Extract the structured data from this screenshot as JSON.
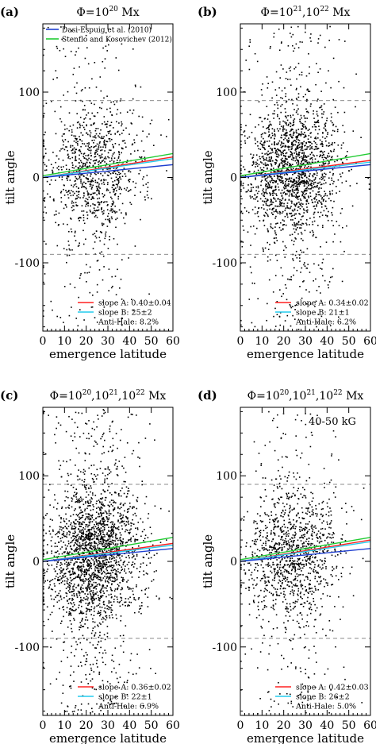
{
  "figure": {
    "xlabel": "emergence latitude",
    "ylabel": "tilt angle",
    "colors": {
      "red": "#ff2020",
      "blue": "#1f3fd0",
      "green": "#22cc33",
      "cyan": "#22ccee",
      "points": "#000000",
      "dashed": "#666666"
    }
  },
  "chart_data": [
    {
      "type": "scatter",
      "panel_label": "(a)",
      "title_prefix": "Φ=",
      "title_exponents": [
        "10",
        "20"
      ],
      "title_suffix": "Mx",
      "title_text": "Φ=10^20 Mx",
      "legend_top": [
        {
          "label": "Dasi-Espuig et al. (2010)",
          "color": "#1f3fd0"
        },
        {
          "label": "Stenflo and Kosovichev (2012)",
          "color": "#22cc33"
        }
      ],
      "legend_bottom": [
        {
          "label": "slope A: 0.40±0.04",
          "color": "#ff2020"
        },
        {
          "label": "slope B: 25±2",
          "color": "#22ccee"
        },
        {
          "label": "Anti-Hale: 8.2%",
          "color": ""
        }
      ],
      "annotation": "",
      "xlim": [
        0,
        60
      ],
      "ylim": [
        -180,
        180
      ],
      "xticks": [
        0,
        10,
        20,
        30,
        40,
        50,
        60
      ],
      "yticks": [
        -100,
        0,
        100
      ],
      "hlines": [
        90,
        -90
      ],
      "point_count": 1100,
      "lines": [
        {
          "name": "slope A",
          "color": "#ff2020",
          "x": [
            0,
            60
          ],
          "y": [
            0,
            24
          ]
        },
        {
          "name": "slope B",
          "color": "#22ccee",
          "x": [
            0,
            60
          ],
          "y": [
            0,
            22
          ]
        },
        {
          "name": "Dasi-Espuig et al. (2010)",
          "color": "#1f3fd0",
          "x": [
            0,
            60
          ],
          "y": [
            0,
            15
          ]
        },
        {
          "name": "Stenflo and Kosovichev (2012)",
          "color": "#22cc33",
          "x": [
            0,
            60
          ],
          "y": [
            2,
            28
          ]
        }
      ]
    },
    {
      "type": "scatter",
      "panel_label": "(b)",
      "title_prefix": "Φ=",
      "title_exponents": [
        "10",
        "21",
        "10",
        "22"
      ],
      "title_suffix": "Mx",
      "title_text": "Φ=10^21,10^22 Mx",
      "legend_top": [],
      "legend_bottom": [
        {
          "label": "slope A: 0.34±0.02",
          "color": "#ff2020"
        },
        {
          "label": "slope B: 21±1",
          "color": "#22ccee"
        },
        {
          "label": "Anti-Hale: 6.2%",
          "color": ""
        }
      ],
      "annotation": "",
      "xlim": [
        0,
        60
      ],
      "ylim": [
        -180,
        180
      ],
      "xticks": [
        0,
        10,
        20,
        30,
        40,
        50,
        60
      ],
      "yticks": [
        -100,
        0,
        100
      ],
      "hlines": [
        90,
        -90
      ],
      "point_count": 1900,
      "lines": [
        {
          "name": "slope A",
          "color": "#ff2020",
          "x": [
            0,
            60
          ],
          "y": [
            0,
            20
          ]
        },
        {
          "name": "slope B",
          "color": "#22ccee",
          "x": [
            0,
            60
          ],
          "y": [
            0,
            18
          ]
        },
        {
          "name": "blue",
          "color": "#1f3fd0",
          "x": [
            0,
            60
          ],
          "y": [
            0,
            15
          ]
        },
        {
          "name": "green",
          "color": "#22cc33",
          "x": [
            0,
            60
          ],
          "y": [
            2,
            28
          ]
        }
      ]
    },
    {
      "type": "scatter",
      "panel_label": "(c)",
      "title_prefix": "Φ=",
      "title_exponents": [
        "10",
        "20",
        "10",
        "21",
        "10",
        "22"
      ],
      "title_suffix": "Mx",
      "title_text": "Φ=10^20,10^21,10^22 Mx",
      "legend_top": [],
      "legend_bottom": [
        {
          "label": "slope A: 0.36±0.02",
          "color": "#ff2020"
        },
        {
          "label": "slope B: 22±1",
          "color": "#22ccee"
        },
        {
          "label": "Anti-Hale: 6.9%",
          "color": ""
        }
      ],
      "annotation": "",
      "xlim": [
        0,
        60
      ],
      "ylim": [
        -180,
        180
      ],
      "xticks": [
        0,
        10,
        20,
        30,
        40,
        50,
        60
      ],
      "yticks": [
        -100,
        0,
        100
      ],
      "hlines": [
        90,
        -90
      ],
      "point_count": 2400,
      "lines": [
        {
          "name": "slope A",
          "color": "#ff2020",
          "x": [
            0,
            60
          ],
          "y": [
            0,
            21
          ]
        },
        {
          "name": "slope B",
          "color": "#22ccee",
          "x": [
            0,
            60
          ],
          "y": [
            0,
            19
          ]
        },
        {
          "name": "blue",
          "color": "#1f3fd0",
          "x": [
            0,
            60
          ],
          "y": [
            0,
            15
          ]
        },
        {
          "name": "green",
          "color": "#22cc33",
          "x": [
            0,
            60
          ],
          "y": [
            2,
            28
          ]
        }
      ]
    },
    {
      "type": "scatter",
      "panel_label": "(d)",
      "title_prefix": "Φ=",
      "title_exponents": [
        "10",
        "20",
        "10",
        "21",
        "10",
        "22"
      ],
      "title_suffix": "Mx",
      "title_text": "Φ=10^20,10^21,10^22 Mx",
      "legend_top": [],
      "legend_bottom": [
        {
          "label": "slope A: 0.42±0.03",
          "color": "#ff2020"
        },
        {
          "label": "slope B: 26±2",
          "color": "#22ccee"
        },
        {
          "label": "Anti-Hale: 5.0%",
          "color": ""
        }
      ],
      "annotation": "40-50 kG",
      "xlim": [
        0,
        60
      ],
      "ylim": [
        -180,
        180
      ],
      "xticks": [
        0,
        10,
        20,
        30,
        40,
        50,
        60
      ],
      "yticks": [
        -100,
        0,
        100
      ],
      "hlines": [
        90,
        -90
      ],
      "point_count": 1300,
      "lines": [
        {
          "name": "slope A",
          "color": "#ff2020",
          "x": [
            0,
            60
          ],
          "y": [
            0,
            25
          ]
        },
        {
          "name": "slope B",
          "color": "#22ccee",
          "x": [
            0,
            60
          ],
          "y": [
            0,
            23
          ]
        },
        {
          "name": "blue",
          "color": "#1f3fd0",
          "x": [
            0,
            60
          ],
          "y": [
            0,
            15
          ]
        },
        {
          "name": "green",
          "color": "#22cc33",
          "x": [
            0,
            60
          ],
          "y": [
            2,
            28
          ]
        }
      ]
    }
  ]
}
